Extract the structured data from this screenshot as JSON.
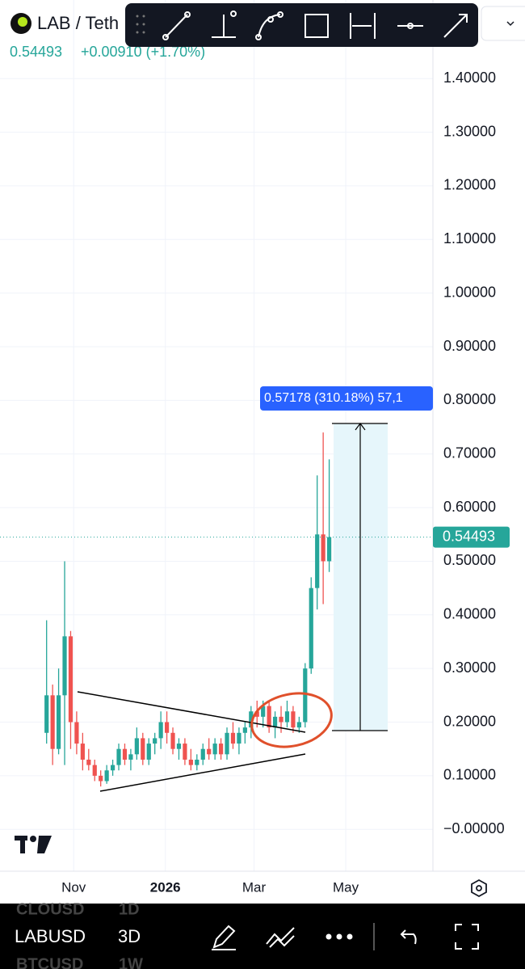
{
  "header": {
    "symbol": "LAB / Teth",
    "change": "+0.00910 (+1.70%)"
  },
  "chart_data": {
    "type": "candlestick",
    "x": [
      -18,
      -14,
      -10,
      -6,
      -2,
      2,
      6,
      10,
      14,
      18,
      22,
      26,
      30,
      34,
      38,
      42,
      46,
      50,
      54,
      58,
      62,
      66,
      70,
      74,
      78,
      82,
      86,
      90,
      94,
      98,
      102,
      106,
      110,
      114,
      118,
      122,
      126,
      130,
      134,
      138,
      142,
      146,
      150,
      154,
      158,
      162,
      166,
      170
    ],
    "open": [
      0.18,
      0.25,
      0.15,
      0.25,
      0.36,
      0.2,
      0.16,
      0.13,
      0.12,
      0.1,
      0.09,
      0.11,
      0.12,
      0.15,
      0.13,
      0.14,
      0.17,
      0.13,
      0.16,
      0.17,
      0.2,
      0.18,
      0.15,
      0.16,
      0.13,
      0.12,
      0.13,
      0.15,
      0.14,
      0.16,
      0.14,
      0.18,
      0.16,
      0.18,
      0.19,
      0.22,
      0.21,
      0.23,
      0.19,
      0.21,
      0.2,
      0.22,
      0.19,
      0.2,
      0.3,
      0.45,
      0.55,
      0.5
    ],
    "high": [
      0.39,
      0.27,
      0.3,
      0.5,
      0.37,
      0.22,
      0.18,
      0.15,
      0.13,
      0.11,
      0.12,
      0.13,
      0.16,
      0.16,
      0.15,
      0.19,
      0.18,
      0.17,
      0.18,
      0.22,
      0.22,
      0.19,
      0.17,
      0.17,
      0.15,
      0.14,
      0.16,
      0.17,
      0.17,
      0.17,
      0.19,
      0.2,
      0.19,
      0.2,
      0.23,
      0.24,
      0.24,
      0.24,
      0.22,
      0.23,
      0.24,
      0.23,
      0.21,
      0.31,
      0.47,
      0.66,
      0.74,
      0.69
    ],
    "low": [
      0.16,
      0.12,
      0.14,
      0.12,
      0.15,
      0.14,
      0.11,
      0.11,
      0.09,
      0.08,
      0.085,
      0.1,
      0.11,
      0.12,
      0.11,
      0.13,
      0.12,
      0.12,
      0.14,
      0.15,
      0.16,
      0.14,
      0.13,
      0.12,
      0.11,
      0.11,
      0.12,
      0.13,
      0.13,
      0.13,
      0.13,
      0.15,
      0.14,
      0.16,
      0.17,
      0.19,
      0.19,
      0.18,
      0.17,
      0.18,
      0.19,
      0.18,
      0.18,
      0.19,
      0.29,
      0.41,
      0.42,
      0.48
    ],
    "close": [
      0.25,
      0.15,
      0.25,
      0.36,
      0.2,
      0.16,
      0.13,
      0.12,
      0.1,
      0.09,
      0.11,
      0.12,
      0.15,
      0.13,
      0.14,
      0.17,
      0.13,
      0.16,
      0.17,
      0.2,
      0.18,
      0.15,
      0.16,
      0.13,
      0.12,
      0.13,
      0.15,
      0.14,
      0.16,
      0.14,
      0.18,
      0.16,
      0.18,
      0.19,
      0.22,
      0.21,
      0.23,
      0.19,
      0.21,
      0.2,
      0.22,
      0.19,
      0.2,
      0.3,
      0.45,
      0.55,
      0.5,
      0.54493
    ],
    "up_color": "#26a69a",
    "down_color": "#ef5350",
    "xlim": [
      -49,
      239
    ],
    "ylim": [
      -0.078,
      1.441
    ],
    "xticks": [
      {
        "value": 0,
        "label": "Nov"
      },
      {
        "value": 61,
        "label": "2026"
      },
      {
        "value": 120,
        "label": "Mar"
      },
      {
        "value": 181,
        "label": "May"
      }
    ],
    "yticks": [
      {
        "value": 1.4,
        "label": "1.40000"
      },
      {
        "value": 1.3,
        "label": "1.30000"
      },
      {
        "value": 1.2,
        "label": "1.20000"
      },
      {
        "value": 1.1,
        "label": "1.10000"
      },
      {
        "value": 1.0,
        "label": "1.00000"
      },
      {
        "value": 0.9,
        "label": "0.90000"
      },
      {
        "value": 0.8,
        "label": "0.80000"
      },
      {
        "value": 0.7,
        "label": "0.70000"
      },
      {
        "value": 0.6,
        "label": "0.60000"
      },
      {
        "value": 0.5,
        "label": "0.50000"
      },
      {
        "value": 0.4,
        "label": "0.40000"
      },
      {
        "value": 0.3,
        "label": "0.30000"
      },
      {
        "value": 0.2,
        "label": "0.20000"
      },
      {
        "value": 0.1,
        "label": "0.10000"
      },
      {
        "value": 0,
        "label": "−0.00000"
      }
    ],
    "grid": true,
    "measure_label": "0.57178 (310.18%) 57,1"
  },
  "footer": {
    "prev_symbol": "CLOUSD",
    "prev_interval": "1D",
    "symbol": "LABUSD",
    "interval": "3D",
    "next_symbol": "BTCUSD",
    "next_interval": "1W"
  }
}
